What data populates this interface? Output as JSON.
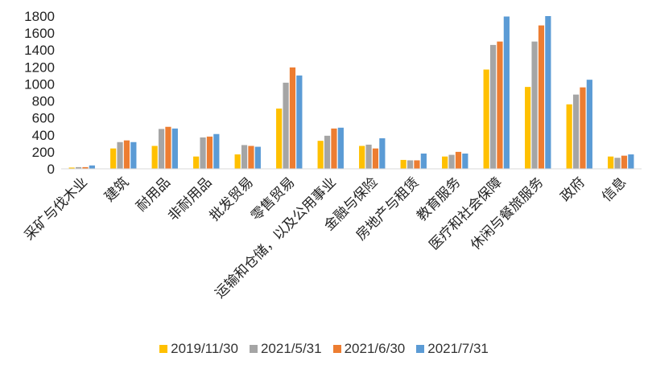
{
  "chart_data": {
    "type": "bar",
    "categories": [
      "采矿与伐木业",
      "建筑",
      "耐用品",
      "非耐用品",
      "批发贸易",
      "零售贸易",
      "运输和仓储，以及公用事业",
      "金融与保险",
      "房地产与租赁",
      "教育服务",
      "医疗和社会保障",
      "休闲与餐旅服务",
      "政府",
      "信息"
    ],
    "series": [
      {
        "name": "2019/11/30",
        "color": "#FFC000",
        "values": [
          15,
          240,
          270,
          145,
          170,
          710,
          330,
          270,
          105,
          145,
          1170,
          965,
          760,
          145
        ]
      },
      {
        "name": "2021/5/31",
        "color": "#A5A5A5",
        "values": [
          20,
          315,
          470,
          370,
          280,
          1015,
          390,
          285,
          100,
          165,
          1460,
          1500,
          875,
          130
        ]
      },
      {
        "name": "2021/6/30",
        "color": "#ED7D31",
        "values": [
          20,
          335,
          495,
          380,
          270,
          1195,
          475,
          240,
          100,
          200,
          1500,
          1690,
          960,
          155
        ]
      },
      {
        "name": "2021/7/31",
        "color": "#5B9BD5",
        "values": [
          40,
          315,
          475,
          410,
          260,
          1100,
          485,
          360,
          180,
          180,
          1795,
          1800,
          1050,
          170
        ]
      }
    ],
    "ylim": [
      0,
      1800
    ],
    "yticks": [
      "0",
      "200",
      "400",
      "600",
      "800",
      "1000",
      "1200",
      "1400",
      "1600",
      "1800"
    ],
    "grid": false,
    "legend_position": "bottom"
  }
}
